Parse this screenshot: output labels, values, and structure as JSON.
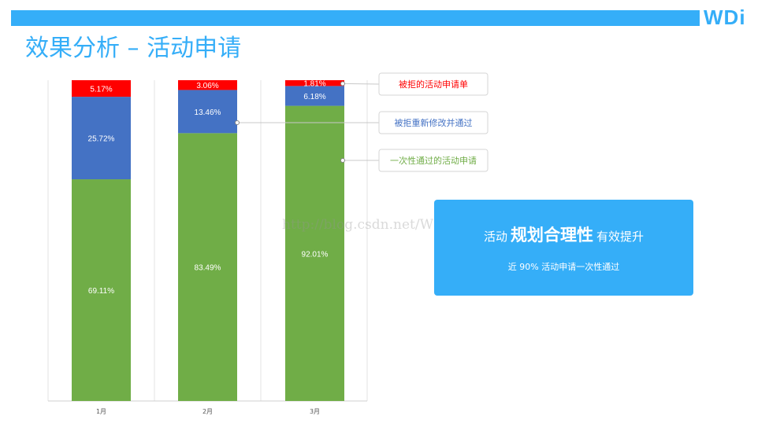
{
  "header": {
    "logo": "WDi",
    "title": "效果分析 – 活动申请"
  },
  "colors": {
    "accent": "#35aef8",
    "rejected": "#ff0000",
    "revised": "#4472c4",
    "passed": "#70ad47"
  },
  "chart_data": {
    "type": "bar",
    "stacked": true,
    "percent": true,
    "categories": [
      "1月",
      "2月",
      "3月"
    ],
    "ylim": [
      0,
      100
    ],
    "series": [
      {
        "name": "一次性通过的活动申请",
        "values": [
          69.11,
          83.49,
          92.01
        ],
        "labels": [
          "69.11%",
          "83.49%",
          "92.01%"
        ],
        "color": "#70ad47"
      },
      {
        "name": "被拒重新修改并通过",
        "values": [
          25.72,
          13.46,
          6.18
        ],
        "labels": [
          "25.72%",
          "13.46%",
          "6.18%"
        ],
        "color": "#4472c4"
      },
      {
        "name": "被拒的活动申请单",
        "values": [
          5.17,
          3.06,
          1.81
        ],
        "labels": [
          "5.17%",
          "3.06%",
          "1.81%"
        ],
        "color": "#ff0000"
      }
    ],
    "legend": "right, callout labels"
  },
  "callout": {
    "line1_prefix": "活动",
    "line1_emphasis": "规划合理性",
    "line1_suffix": "有效提升",
    "line2": "近 90% 活动申请一次性通过"
  },
  "watermark": "http://blog.csdn.net/WDITech"
}
